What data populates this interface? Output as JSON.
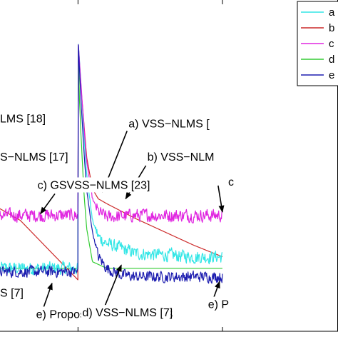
{
  "chart_data": {
    "type": "line",
    "title": "",
    "xlabel": "",
    "ylabel": "",
    "xlim": [
      -0.27,
      0.9
    ],
    "ylim": [
      -1.0,
      1.0
    ],
    "grid": false,
    "legend_placement": "top-right",
    "legend_entries": [
      "a",
      "b",
      "c",
      "d",
      "e"
    ],
    "x_ticks": [
      0,
      0.5
    ],
    "series": [
      {
        "name": "a",
        "color": "#33e6e6",
        "x": [
          -0.27,
          -0.2,
          -0.1,
          0,
          0.001,
          0.01,
          0.02,
          0.03,
          0.05,
          0.07,
          0.1,
          0.15,
          0.2,
          0.3,
          0.4,
          0.5
        ],
        "y": [
          -0.62,
          -0.62,
          -0.62,
          -0.62,
          0.74,
          0.5,
          0.2,
          -0.05,
          -0.33,
          -0.43,
          -0.47,
          -0.5,
          -0.53,
          -0.54,
          -0.55,
          -0.55
        ]
      },
      {
        "name": "b",
        "color": "#cc2a2a",
        "x": [
          -0.27,
          -0.2,
          -0.1,
          0,
          0.001,
          0.01,
          0.03,
          0.05,
          0.07,
          0.1,
          0.2,
          0.3,
          0.4,
          0.5
        ],
        "y": [
          -0.26,
          -0.33,
          -0.51,
          -0.69,
          0.74,
          0.48,
          0.05,
          -0.14,
          -0.2,
          -0.23,
          -0.32,
          -0.4,
          -0.48,
          -0.55
        ]
      },
      {
        "name": "c",
        "color": "#e026e0",
        "x": [
          -0.27,
          -0.2,
          -0.1,
          0,
          0.001,
          0.01,
          0.02,
          0.03,
          0.05,
          0.07,
          0.1,
          0.2,
          0.3,
          0.4,
          0.5
        ],
        "y": [
          -0.3,
          -0.3,
          -0.3,
          -0.3,
          0.74,
          0.5,
          0.25,
          0.02,
          -0.2,
          -0.28,
          -0.31,
          -0.3,
          -0.3,
          -0.3,
          -0.3
        ]
      },
      {
        "name": "d",
        "color": "#33cc33",
        "x": [
          -0.27,
          -0.2,
          -0.1,
          0,
          0.001,
          0.005,
          0.01,
          0.02,
          0.03,
          0.05,
          0.1,
          0.3,
          0.5
        ],
        "y": [
          -0.62,
          -0.62,
          -0.62,
          -0.62,
          0.74,
          0.4,
          0.2,
          -0.15,
          -0.38,
          -0.58,
          -0.62,
          -0.62,
          -0.62
        ]
      },
      {
        "name": "e",
        "color": "#1f1fb0",
        "x": [
          -0.27,
          -0.2,
          -0.1,
          0,
          0.001,
          0.01,
          0.02,
          0.03,
          0.05,
          0.07,
          0.1,
          0.15,
          0.2,
          0.3,
          0.4,
          0.5
        ],
        "y": [
          -0.64,
          -0.64,
          -0.64,
          -0.64,
          0.74,
          0.4,
          0.1,
          -0.15,
          -0.4,
          -0.55,
          -0.62,
          -0.66,
          -0.67,
          -0.67,
          -0.67,
          -0.67
        ]
      }
    ],
    "annotations": [
      {
        "text": "LMS [18]",
        "x": -0.27,
        "y": 0.26
      },
      {
        "text": "S−NLMS [17]",
        "x": -0.27,
        "y": 0.03
      },
      {
        "text": "c) GSVSS−NLMS [23]",
        "x": -0.14,
        "y": -0.14
      },
      {
        "text": "S [7]",
        "x": -0.27,
        "y": -0.79
      },
      {
        "text": "e) Proposed MSSD−NLMS",
        "x": -0.145,
        "y": -0.92
      },
      {
        "text": "a) VSS−NLMS [",
        "x": 0.175,
        "y": 0.23
      },
      {
        "text": "b) VSS−NLM",
        "x": 0.24,
        "y": 0.03
      },
      {
        "text": "c",
        "x": 0.52,
        "y": -0.12
      },
      {
        "text": "d) VSS−NLMS [7]",
        "x": 0.015,
        "y": -0.91
      },
      {
        "text": "e) P",
        "x": 0.45,
        "y": -0.86
      }
    ],
    "arrows": [
      {
        "from": [
          -0.08,
          -0.17
        ],
        "to": [
          -0.13,
          -0.29
        ]
      },
      {
        "from": [
          -0.12,
          -0.86
        ],
        "to": [
          -0.09,
          -0.71
        ]
      },
      {
        "from": [
          0.17,
          0.21
        ],
        "to": [
          0.085,
          -0.16
        ]
      },
      {
        "from": [
          0.235,
          0.0
        ],
        "to": [
          0.165,
          -0.2
        ]
      },
      {
        "from": [
          0.09,
          -0.86
        ],
        "to": [
          0.15,
          -0.6
        ]
      },
      {
        "from": [
          0.465,
          -0.82
        ],
        "to": [
          0.49,
          -0.7
        ]
      },
      {
        "from": [
          0.485,
          -0.12
        ],
        "to": [
          0.5,
          -0.28
        ]
      }
    ]
  }
}
